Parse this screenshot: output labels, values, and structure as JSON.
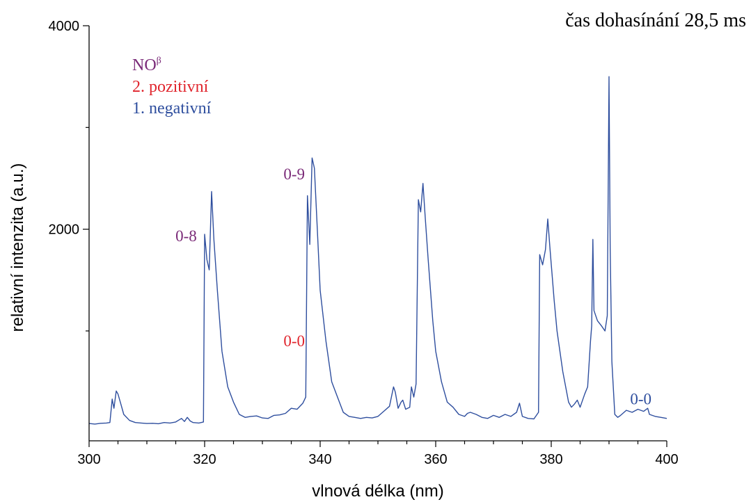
{
  "chart_data": {
    "type": "line",
    "title": "čas dohasínání 28,5 ms",
    "xlabel": "vlnová délka (nm)",
    "ylabel": "relativní intenzita (a.u.)",
    "xlim": [
      300,
      400
    ],
    "ylim": [
      -80,
      4000
    ],
    "x_ticks": [
      300,
      320,
      340,
      360,
      380,
      400
    ],
    "x_tick_labels": [
      "300",
      "320",
      "340",
      "360",
      "380",
      "400"
    ],
    "y_ticks": [
      2000,
      4000
    ],
    "y_tick_labels": [
      "2000",
      "4000"
    ],
    "grid": false,
    "legend_position": "top-left",
    "legend": [
      {
        "label_main": "NO",
        "label_sup": "β",
        "color": "#7a2a78"
      },
      {
        "label_main": "2. pozitivní",
        "label_sup": "",
        "color": "#e0242c"
      },
      {
        "label_main": "1. negativní",
        "label_sup": "",
        "color": "#2e4e9e"
      }
    ],
    "series": [
      {
        "color": "#2e4e9e",
        "points": [
          [
            300,
            90
          ],
          [
            301,
            85
          ],
          [
            302,
            92
          ],
          [
            303,
            95
          ],
          [
            303.6,
            100
          ],
          [
            304.0,
            330
          ],
          [
            304.3,
            240
          ],
          [
            304.7,
            410
          ],
          [
            305.0,
            380
          ],
          [
            305.5,
            280
          ],
          [
            306,
            180
          ],
          [
            307,
            120
          ],
          [
            308,
            100
          ],
          [
            309,
            95
          ],
          [
            310,
            90
          ],
          [
            311,
            92
          ],
          [
            312,
            88
          ],
          [
            313,
            100
          ],
          [
            314,
            95
          ],
          [
            315,
            105
          ],
          [
            316,
            140
          ],
          [
            316.5,
            110
          ],
          [
            317,
            150
          ],
          [
            317.5,
            115
          ],
          [
            318,
            100
          ],
          [
            319,
            95
          ],
          [
            319.8,
            105
          ],
          [
            320.0,
            1950
          ],
          [
            320.4,
            1700
          ],
          [
            320.8,
            1600
          ],
          [
            321.2,
            2370
          ],
          [
            321.6,
            1900
          ],
          [
            322.2,
            1400
          ],
          [
            323,
            800
          ],
          [
            324,
            450
          ],
          [
            325,
            300
          ],
          [
            326,
            180
          ],
          [
            327,
            150
          ],
          [
            328,
            160
          ],
          [
            329,
            165
          ],
          [
            330,
            145
          ],
          [
            331,
            140
          ],
          [
            332,
            170
          ],
          [
            333,
            175
          ],
          [
            334,
            190
          ],
          [
            335,
            240
          ],
          [
            336,
            230
          ],
          [
            337,
            290
          ],
          [
            337.5,
            350
          ],
          [
            337.8,
            2330
          ],
          [
            338.2,
            1850
          ],
          [
            338.6,
            2700
          ],
          [
            339.0,
            2600
          ],
          [
            339.5,
            2000
          ],
          [
            340,
            1400
          ],
          [
            341,
            900
          ],
          [
            342,
            500
          ],
          [
            343,
            350
          ],
          [
            344,
            200
          ],
          [
            345,
            160
          ],
          [
            346,
            150
          ],
          [
            347,
            140
          ],
          [
            348,
            150
          ],
          [
            349,
            145
          ],
          [
            350,
            160
          ],
          [
            351,
            210
          ],
          [
            352,
            260
          ],
          [
            352.7,
            450
          ],
          [
            353.0,
            400
          ],
          [
            353.5,
            240
          ],
          [
            354.0,
            300
          ],
          [
            354.3,
            320
          ],
          [
            354.8,
            230
          ],
          [
            355.5,
            250
          ],
          [
            355.8,
            450
          ],
          [
            356.2,
            350
          ],
          [
            356.6,
            480
          ],
          [
            357.0,
            2290
          ],
          [
            357.4,
            2170
          ],
          [
            357.8,
            2450
          ],
          [
            358.2,
            2100
          ],
          [
            358.7,
            1700
          ],
          [
            359.5,
            1100
          ],
          [
            360,
            800
          ],
          [
            361,
            500
          ],
          [
            362,
            300
          ],
          [
            363,
            250
          ],
          [
            364,
            180
          ],
          [
            365,
            160
          ],
          [
            365.5,
            190
          ],
          [
            366,
            200
          ],
          [
            367,
            180
          ],
          [
            368,
            150
          ],
          [
            369,
            140
          ],
          [
            370,
            170
          ],
          [
            371,
            150
          ],
          [
            372,
            180
          ],
          [
            373,
            160
          ],
          [
            374,
            200
          ],
          [
            374.5,
            290
          ],
          [
            375,
            160
          ],
          [
            376,
            140
          ],
          [
            377,
            135
          ],
          [
            377.8,
            200
          ],
          [
            378.0,
            1750
          ],
          [
            378.5,
            1650
          ],
          [
            379.0,
            1800
          ],
          [
            379.4,
            2100
          ],
          [
            379.8,
            1800
          ],
          [
            380.5,
            1300
          ],
          [
            381,
            1000
          ],
          [
            382,
            600
          ],
          [
            383,
            300
          ],
          [
            383.5,
            250
          ],
          [
            384,
            280
          ],
          [
            384.5,
            320
          ],
          [
            385,
            250
          ],
          [
            385.8,
            380
          ],
          [
            386.3,
            450
          ],
          [
            386.8,
            900
          ],
          [
            387.0,
            1050
          ],
          [
            387.2,
            1900
          ],
          [
            387.4,
            1200
          ],
          [
            388,
            1100
          ],
          [
            388.7,
            1050
          ],
          [
            389.3,
            1000
          ],
          [
            389.7,
            1150
          ],
          [
            390.0,
            3500
          ],
          [
            390.2,
            1800
          ],
          [
            390.5,
            700
          ],
          [
            391,
            180
          ],
          [
            391.5,
            150
          ],
          [
            392,
            170
          ],
          [
            393,
            220
          ],
          [
            394,
            200
          ],
          [
            395,
            230
          ],
          [
            396,
            210
          ],
          [
            396.7,
            240
          ],
          [
            397,
            180
          ],
          [
            398,
            160
          ],
          [
            399,
            150
          ],
          [
            400,
            140
          ]
        ]
      }
    ],
    "annotations": [
      {
        "text": "0-8",
        "x": 316.8,
        "y": 1880,
        "color": "#7a2a78"
      },
      {
        "text": "0-9",
        "x": 335.5,
        "y": 2490,
        "color": "#7a2a78"
      },
      {
        "text": "0-0",
        "x": 335.5,
        "y": 850,
        "color": "#e0242c"
      },
      {
        "text": "0-0",
        "x": 395.5,
        "y": 280,
        "color": "#2e4e9e"
      }
    ]
  }
}
